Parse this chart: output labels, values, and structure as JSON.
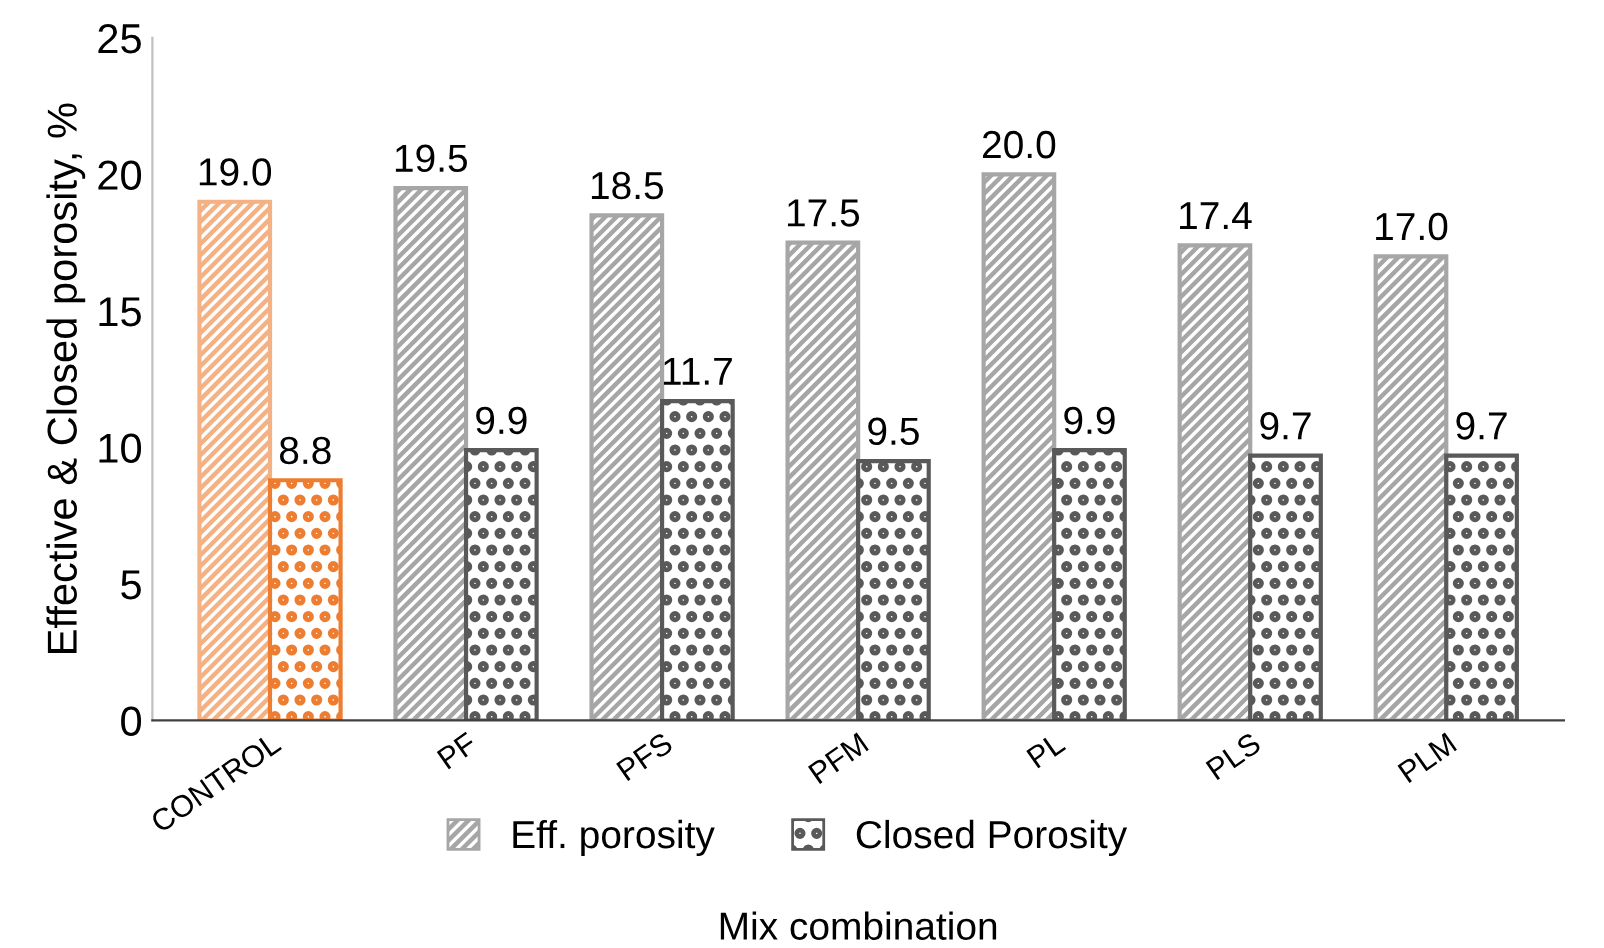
{
  "chart_data": {
    "type": "bar",
    "xlabel": "Mix combination",
    "ylabel": "Effective & Closed porosity, %",
    "categories": [
      "CONTROL",
      "PF",
      "PFS",
      "PFM",
      "PL",
      "PLS",
      "PLM"
    ],
    "series": [
      {
        "name": "Eff. porosity",
        "color": "#a6a6a6",
        "colors": [
          "#f4b183",
          "#a6a6a6",
          "#a6a6a6",
          "#a6a6a6",
          "#a6a6a6",
          "#a6a6a6",
          "#a6a6a6"
        ],
        "values": [
          19.0,
          19.5,
          18.5,
          17.5,
          20.0,
          17.4,
          17.0
        ],
        "value_labels": [
          "19.0",
          "19.5",
          "18.5",
          "17.5",
          "20.0",
          "17.4",
          "17.0"
        ]
      },
      {
        "name": "Closed Porosity",
        "color": "#595959",
        "colors": [
          "#ed7d31",
          "#595959",
          "#595959",
          "#595959",
          "#595959",
          "#595959",
          "#595959"
        ],
        "values": [
          8.8,
          9.9,
          11.7,
          9.5,
          9.9,
          9.7,
          9.7
        ],
        "value_labels": [
          "8.8",
          "9.9",
          "11.7",
          "9.5",
          "9.9",
          "9.7",
          "9.7"
        ]
      }
    ],
    "ylim": [
      0,
      25
    ],
    "yticks": [
      0,
      5,
      10,
      15,
      20,
      25
    ],
    "grid": false,
    "legend": "bottom"
  }
}
